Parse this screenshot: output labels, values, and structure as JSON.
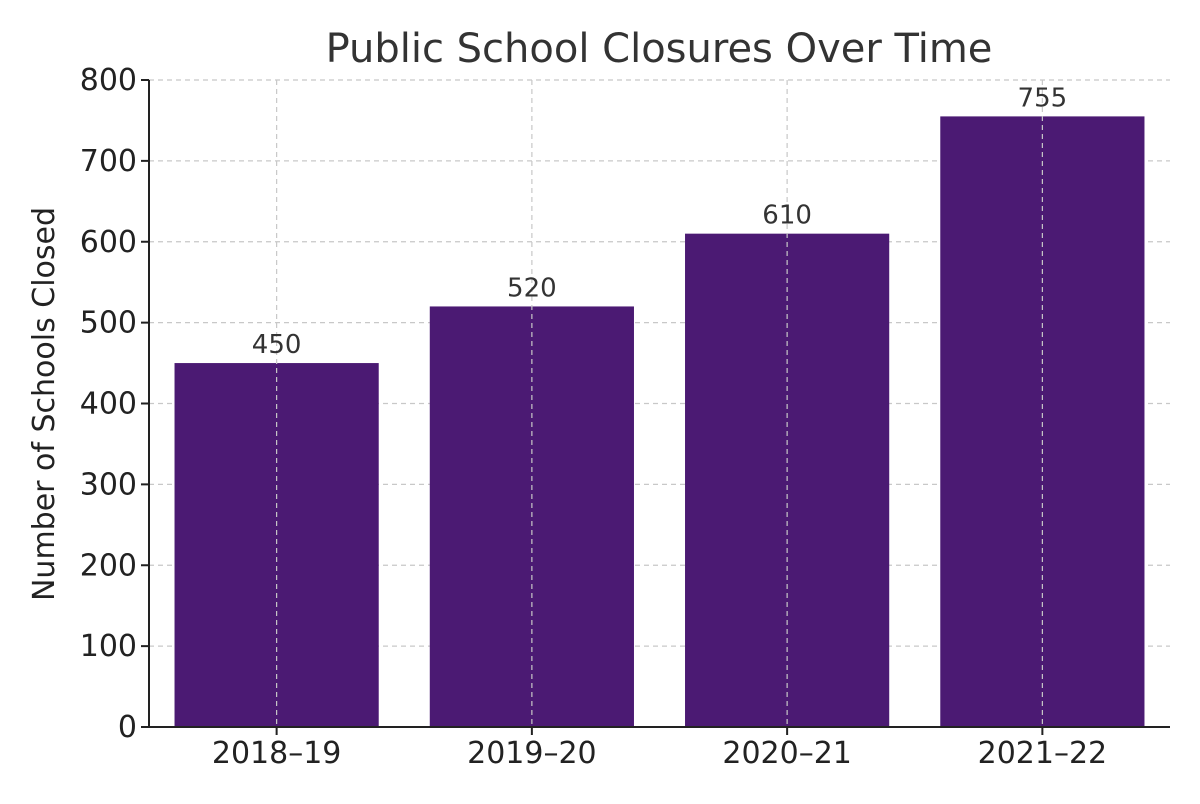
{
  "chart_data": {
    "type": "bar",
    "title": "Public School Closures Over Time",
    "xlabel": "",
    "ylabel": "Number of Schools Closed",
    "categories": [
      "2018–19",
      "2019–20",
      "2020–21",
      "2021–22"
    ],
    "values": [
      450,
      520,
      610,
      755
    ],
    "ylim": [
      0,
      800
    ],
    "yticks": [
      0,
      100,
      200,
      300,
      400,
      500,
      600,
      700,
      800
    ],
    "grid": true,
    "legend": "none",
    "bar_color": "#4b1a73",
    "grid_color": "#c8c8c8",
    "text_color": "#222222",
    "label_color": "#333333"
  }
}
